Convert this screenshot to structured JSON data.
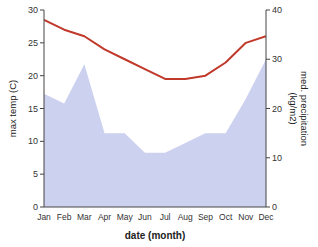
{
  "chart_data": {
    "type": "line",
    "xlabel": "date (month)",
    "ylabel": "max temp (C)",
    "y2label": "med. precipitation\n(kg/m2)",
    "categories": [
      "Jan",
      "Feb",
      "Mar",
      "Apr",
      "May",
      "Jun",
      "Jul",
      "Aug",
      "Sep",
      "Oct",
      "Nov",
      "Dec"
    ],
    "series": [
      {
        "type": "line",
        "color": "#c0392b",
        "values": [
          28.5,
          27.0,
          26.0,
          24.0,
          22.5,
          21.0,
          19.5,
          19.5,
          20.0,
          22.0,
          25.0,
          26.0
        ]
      },
      {
        "type": "area",
        "axis": "y2",
        "color": "#b0b8e8",
        "values": [
          23,
          21,
          29,
          15,
          15,
          11,
          11,
          13,
          15,
          15,
          22,
          30
        ]
      }
    ],
    "ylim": [
      0,
      30
    ],
    "yticks": [
      0,
      5,
      10,
      15,
      20,
      25,
      30
    ],
    "y2lim": [
      0,
      40
    ],
    "y2ticks": [
      0,
      10,
      20,
      30,
      40
    ],
    "grid": false
  }
}
